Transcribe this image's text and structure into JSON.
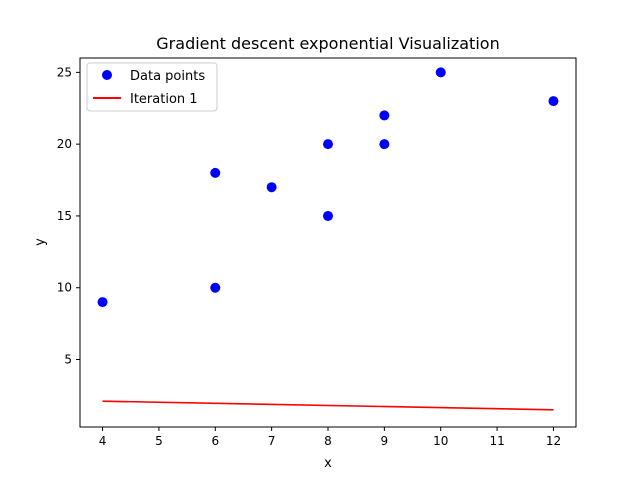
{
  "chart_data": {
    "type": "scatter",
    "title": "Gradient descent exponential Visualization",
    "xlabel": "x",
    "ylabel": "y",
    "xlim": [
      3.6,
      12.4
    ],
    "ylim": [
      0.3,
      26.0
    ],
    "xticks": [
      4,
      5,
      6,
      7,
      8,
      9,
      10,
      11,
      12
    ],
    "yticks": [
      5,
      10,
      15,
      20,
      25
    ],
    "grid": false,
    "legend_position": "top-left",
    "series": [
      {
        "name": "Data points",
        "kind": "scatter",
        "color": "#0000ff",
        "x": [
          4,
          6,
          6,
          7,
          8,
          8,
          9,
          9,
          10,
          12
        ],
        "y": [
          9,
          10,
          18,
          17,
          15,
          20,
          20,
          22,
          25,
          23
        ]
      },
      {
        "name": "Iteration 1",
        "kind": "line",
        "color": "#ff0000",
        "x": [
          4,
          12
        ],
        "y": [
          2.1,
          1.5
        ]
      }
    ]
  }
}
